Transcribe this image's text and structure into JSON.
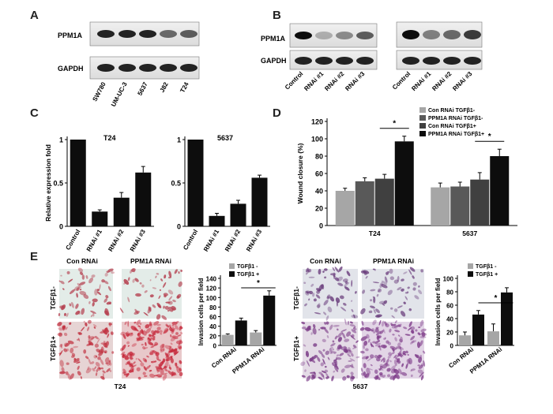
{
  "panels": {
    "A": {
      "letter": "A",
      "blots": [
        "PPM1A",
        "GAPDH"
      ],
      "lanes": [
        "SW780",
        "UM-UC-3",
        "5637",
        "J82",
        "T24"
      ]
    },
    "B": {
      "letter": "B",
      "blots": [
        "PPM1A",
        "GAPDH"
      ],
      "lanes": [
        "Control",
        "RNAi #1",
        "RNAi #2",
        "RNAi #3"
      ]
    },
    "C": {
      "letter": "C"
    },
    "D": {
      "letter": "D"
    },
    "E": {
      "letter": "E",
      "col_labels": [
        "Con RNAi",
        "PPM1A RNAi"
      ],
      "row_labels": [
        "TGFβ1-",
        "TGFβ1+"
      ],
      "cell_lines": [
        "T24",
        "5637"
      ]
    }
  },
  "chart_data": [
    {
      "id": "C-T24",
      "type": "bar",
      "title": "T24",
      "ylabel": "Relative expression fold",
      "categories": [
        "Control",
        "RNAi #1",
        "RNAi #2",
        "RNAi #3"
      ],
      "values": [
        1.0,
        0.17,
        0.33,
        0.62
      ],
      "errors": [
        0,
        0.02,
        0.06,
        0.07
      ],
      "ylim": [
        0,
        1
      ],
      "yticks": [
        "0",
        "0.5",
        "1"
      ]
    },
    {
      "id": "C-5637",
      "type": "bar",
      "title": "5637",
      "ylabel": "",
      "categories": [
        "Control",
        "RNAi #1",
        "RNAi #2",
        "RNAi #3"
      ],
      "values": [
        1.0,
        0.12,
        0.26,
        0.56
      ],
      "errors": [
        0,
        0.03,
        0.04,
        0.03
      ],
      "ylim": [
        0,
        1
      ],
      "yticks": [
        "0",
        "0.5",
        "1"
      ]
    },
    {
      "id": "D",
      "type": "bar",
      "ylabel": "Wound closure (%)",
      "categories": [
        "T24",
        "5637"
      ],
      "series": [
        {
          "name": "Con RNAi TGFβ1-",
          "color": "#a6a6a6",
          "values": [
            40,
            44
          ],
          "errors": [
            3,
            5
          ]
        },
        {
          "name": "PPM1A RNAi TGFβ1-",
          "color": "#595959",
          "values": [
            51,
            45
          ],
          "errors": [
            4,
            5
          ]
        },
        {
          "name": "Con RNAi  TGFβ1+",
          "color": "#404040",
          "values": [
            54,
            53
          ],
          "errors": [
            5,
            8
          ]
        },
        {
          "name": "PPM1A RNAi TGFβ1+",
          "color": "#0d0d0d",
          "values": [
            97,
            80
          ],
          "errors": [
            6,
            8
          ]
        }
      ],
      "ylim": [
        0,
        120
      ],
      "yticks": [
        "0",
        "20",
        "40",
        "60",
        "80",
        "100",
        "120"
      ],
      "significance": [
        "*",
        "*"
      ]
    },
    {
      "id": "E-T24",
      "type": "bar",
      "ylabel": "Invasion cells per field",
      "categories": [
        "Con RNAi",
        "PPM1A RNAi"
      ],
      "series": [
        {
          "name": "TGFβ1 -",
          "color": "#a6a6a6",
          "values": [
            22,
            27
          ],
          "errors": [
            2,
            4
          ]
        },
        {
          "name": "TGFβ1 +",
          "color": "#0d0d0d",
          "values": [
            52,
            104
          ],
          "errors": [
            5,
            10
          ]
        }
      ],
      "ylim": [
        0,
        140
      ],
      "yticks": [
        "0",
        "20",
        "40",
        "60",
        "80",
        "100",
        "120",
        "140"
      ],
      "significance": "*"
    },
    {
      "id": "E-5637",
      "type": "bar",
      "ylabel": "Invasion cells per field",
      "categories": [
        "Con RNAi",
        "PPM1A RNAi"
      ],
      "series": [
        {
          "name": "TGFβ1 -",
          "color": "#a6a6a6",
          "values": [
            15,
            21
          ],
          "errors": [
            5,
            11
          ]
        },
        {
          "name": "TGFβ1 +",
          "color": "#0d0d0d",
          "values": [
            46,
            79
          ],
          "errors": [
            6,
            7
          ]
        }
      ],
      "ylim": [
        0,
        100
      ],
      "yticks": [
        "0",
        "20",
        "40",
        "60",
        "80",
        "100"
      ],
      "significance": "*"
    }
  ]
}
